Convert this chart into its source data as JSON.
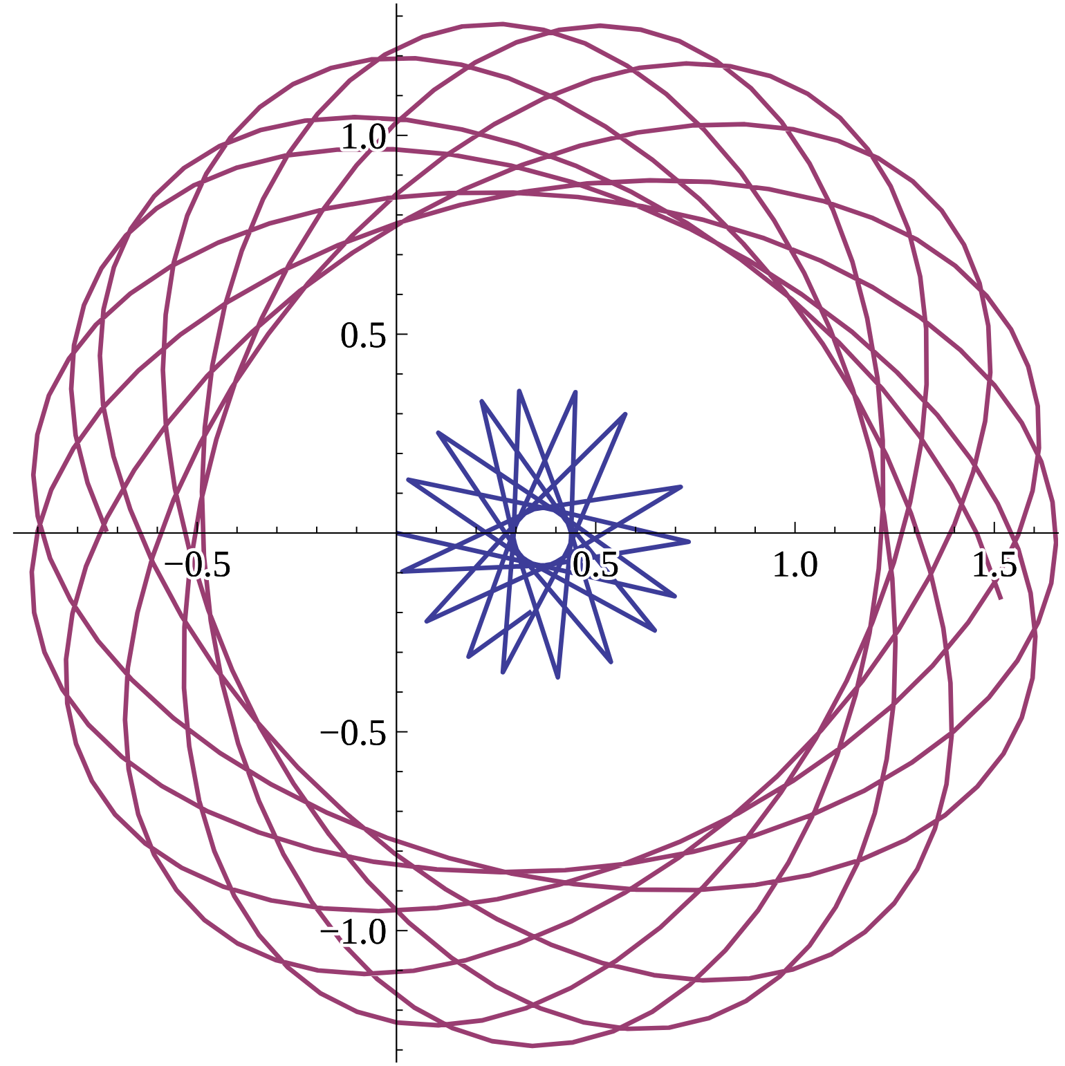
{
  "chart_data": {
    "type": "line",
    "xlim": [
      -0.96,
      1.66
    ],
    "ylim": [
      -1.33,
      1.33
    ],
    "xticks": [
      {
        "value": -0.9,
        "label": null
      },
      {
        "value": -0.8,
        "label": null
      },
      {
        "value": -0.7,
        "label": null
      },
      {
        "value": -0.6,
        "label": null
      },
      {
        "value": -0.5,
        "label": "−0.5"
      },
      {
        "value": -0.4,
        "label": null
      },
      {
        "value": -0.3,
        "label": null
      },
      {
        "value": -0.2,
        "label": null
      },
      {
        "value": -0.1,
        "label": null
      },
      {
        "value": 0.1,
        "label": null
      },
      {
        "value": 0.2,
        "label": null
      },
      {
        "value": 0.3,
        "label": null
      },
      {
        "value": 0.4,
        "label": null
      },
      0.5,
      {
        "value": 0.6,
        "label": null
      },
      {
        "value": 0.7,
        "label": null
      },
      {
        "value": 0.8,
        "label": null
      },
      {
        "value": 0.9,
        "label": null
      },
      {
        "value": 1.0,
        "label": "1.0"
      },
      {
        "value": 1.1,
        "label": null
      },
      {
        "value": 1.2,
        "label": null
      },
      {
        "value": 1.3,
        "label": null
      },
      {
        "value": 1.4,
        "label": null
      },
      1.5,
      {
        "value": 1.6,
        "label": null
      }
    ],
    "yticks": [
      {
        "value": -1.3,
        "label": null
      },
      {
        "value": -1.2,
        "label": null
      },
      {
        "value": -1.1,
        "label": null
      },
      {
        "value": -1.0,
        "label": "−1.0"
      },
      {
        "value": -0.9,
        "label": null
      },
      {
        "value": -0.8,
        "label": null
      },
      {
        "value": -0.7,
        "label": null
      },
      {
        "value": -0.6,
        "label": null
      },
      {
        "value": -0.5,
        "label": "−0.5"
      },
      {
        "value": -0.4,
        "label": null
      },
      {
        "value": -0.3,
        "label": null
      },
      {
        "value": -0.2,
        "label": null
      },
      {
        "value": -0.1,
        "label": null
      },
      {
        "value": 0.1,
        "label": null
      },
      {
        "value": 0.2,
        "label": null
      },
      {
        "value": 0.3,
        "label": null
      },
      {
        "value": 0.4,
        "label": null
      },
      0.5,
      {
        "value": 0.6,
        "label": null
      },
      {
        "value": 0.7,
        "label": null
      },
      {
        "value": 0.8,
        "label": null
      },
      {
        "value": 0.9,
        "label": null
      },
      {
        "value": 1.0,
        "label": "1.0"
      },
      {
        "value": 1.1,
        "label": null
      },
      {
        "value": 1.2,
        "label": null
      },
      {
        "value": 1.3,
        "label": null
      }
    ],
    "series": [
      {
        "color": "#3d3d99",
        "x": [
          0.0,
          0.35,
          0.698,
          0.407,
          0.105,
          0.308,
          0.538,
          0.434,
          0.308,
          0.294,
          0.267,
          0.431,
          0.574,
          0.314,
          0.076,
          0.4,
          0.713,
          0.345,
          0.015,
          0.374,
          0.733,
          0.382,
          0.03,
          0.328,
          0.648,
          0.423,
          0.214,
          0.297,
          0.405,
          0.438,
          0.449,
          0.299,
          0.181,
          0.339
        ],
        "values": [
          0.0,
          -0.079,
          -0.159,
          0.05,
          0.252,
          -0.052,
          -0.324,
          0.014,
          0.357,
          -0.004,
          -0.35,
          -0.04,
          0.299,
          0.041,
          -0.222,
          -0.073,
          0.116,
          0.06,
          -0.097,
          -0.081,
          -0.022,
          0.061,
          0.134,
          -0.07,
          -0.245,
          0.034,
          0.331,
          -0.028,
          -0.363,
          -0.013,
          0.354,
          0.018,
          -0.311,
          -0.197
        ]
      },
      {
        "color": "#993d71",
        "x": [
          1.517,
          1.457,
          1.393,
          1.313,
          1.219,
          1.111,
          0.993,
          0.865,
          0.731,
          0.591,
          0.449,
          0.305,
          0.164,
          0.026,
          -0.105,
          -0.229,
          -0.342,
          -0.444,
          -0.533,
          -0.608,
          -0.667,
          -0.709,
          -0.735,
          -0.744,
          -0.736,
          -0.71,
          -0.668,
          -0.611,
          -0.539,
          -0.453,
          -0.355,
          -0.247,
          -0.13,
          -0.006,
          0.122,
          0.254,
          0.387,
          0.518,
          0.646,
          0.769,
          0.886,
          0.993,
          1.09,
          1.176,
          1.249,
          1.307,
          1.351,
          1.38,
          1.393,
          1.39,
          1.372,
          1.339,
          1.291,
          1.23,
          1.156,
          1.07,
          0.975,
          0.87,
          0.76,
          0.643,
          0.523,
          0.402,
          0.281,
          0.162,
          0.047,
          -0.063,
          -0.165,
          -0.259,
          -0.343,
          -0.416,
          -0.477,
          -0.525,
          -0.559,
          -0.579,
          -0.586,
          -0.578,
          -0.556,
          -0.52,
          -0.472,
          -0.412,
          -0.341,
          -0.259,
          -0.169,
          -0.072,
          0.031,
          0.139,
          0.249,
          0.36,
          0.471,
          0.58,
          0.684,
          0.784,
          0.877,
          0.961,
          1.037,
          1.102,
          1.157,
          1.2,
          1.23,
          1.248,
          1.252,
          1.244,
          1.223,
          1.19,
          1.145,
          1.089,
          1.023,
          0.947,
          0.864,
          0.773,
          0.677,
          0.577,
          0.474,
          0.37,
          0.267,
          0.165,
          0.066,
          -0.029,
          -0.117,
          -0.198,
          -0.271,
          -0.335,
          -0.388,
          -0.431,
          -0.462,
          -0.481,
          -0.488,
          -0.483,
          -0.466,
          -0.437,
          -0.397,
          -0.345,
          -0.284,
          -0.213,
          -0.134,
          -0.048,
          0.044,
          0.14,
          0.24,
          0.341,
          0.443,
          0.544,
          0.642,
          0.736,
          0.825,
          0.908,
          0.983,
          1.05,
          1.106,
          1.152,
          1.187,
          1.21,
          1.221,
          1.22,
          1.207,
          1.181,
          1.144,
          1.095,
          1.036,
          0.967,
          0.889,
          0.803,
          0.71,
          0.612,
          0.511,
          0.407,
          0.301,
          0.197,
          0.094,
          -0.005,
          -0.1,
          -0.188,
          -0.268,
          -0.339,
          -0.401,
          -0.452,
          -0.491,
          -0.518,
          -0.532,
          -0.533,
          -0.52,
          -0.495,
          -0.457,
          -0.407,
          -0.345,
          -0.272,
          -0.19,
          -0.099,
          0.0,
          0.105,
          0.214,
          0.325,
          0.438,
          0.551,
          0.662,
          0.769,
          0.871,
          0.965,
          1.052,
          1.129,
          1.194,
          1.248,
          1.289,
          1.317,
          1.33,
          1.329,
          1.314,
          1.284,
          1.24,
          1.182,
          1.113,
          1.031,
          0.938,
          0.837,
          0.727,
          0.611,
          0.491,
          0.368,
          0.245,
          0.122,
          0.002,
          -0.113,
          -0.222,
          -0.322,
          -0.413,
          -0.492,
          -0.559,
          -0.612,
          -0.65,
          -0.674,
          -0.681,
          -0.672,
          -0.648,
          -0.608,
          -0.552,
          -0.482,
          -0.399,
          -0.303,
          -0.197,
          -0.081,
          0.043,
          0.172,
          0.305,
          0.44,
          0.574,
          0.706,
          0.834,
          0.955,
          1.067,
          1.17,
          1.26,
          1.337,
          1.4,
          1.447,
          1.477,
          1.49,
          1.485,
          1.463,
          1.424,
          1.368,
          1.296,
          1.21,
          1.109,
          0.997,
          0.874,
          0.742,
          0.604,
          0.461,
          0.316,
          0.171,
          0.029,
          -0.11,
          -0.241,
          -0.363,
          -0.475,
          -0.573,
          -0.658,
          -0.727,
          -0.779,
          -0.813,
          -0.829,
          -0.826,
          -0.804,
          -0.764,
          -0.706,
          -0.63,
          -0.539,
          -0.433,
          -0.314,
          -0.184,
          -0.045,
          0.102,
          0.253,
          0.406,
          0.559,
          0.71,
          0.856,
          0.994,
          1.123,
          1.241,
          1.345,
          1.434,
          1.506,
          1.56,
          1.596,
          1.612,
          1.609,
          1.585,
          1.542,
          1.481,
          1.402,
          1.306,
          1.195,
          1.07,
          0.934,
          0.788,
          0.636,
          0.479,
          0.319,
          0.16,
          0.004,
          -0.146,
          -0.289,
          -0.422,
          -0.542,
          -0.648,
          -0.739,
          -0.811,
          -0.866,
          -0.9,
          -0.915,
          -0.909,
          -0.883,
          -0.838,
          -0.773,
          -0.689,
          -0.589,
          -0.474,
          -0.345,
          -0.205,
          -0.056,
          0.101,
          0.261,
          0.423,
          0.585,
          0.743,
          0.895,
          1.039,
          1.172,
          1.292,
          1.398,
          1.487,
          1.558,
          1.61,
          1.643,
          1.655,
          1.646,
          1.618,
          1.569,
          1.501,
          1.415,
          1.313,
          1.195,
          1.064,
          0.923,
          0.772,
          0.616,
          0.455,
          0.293,
          0.132,
          -0.024,
          -0.175,
          -0.317,
          -0.448,
          -0.565,
          -0.668,
          -0.754,
          -0.822,
          -0.872,
          -0.901,
          -0.911,
          -0.9,
          -0.869,
          -0.818,
          -0.749,
          -0.663,
          -0.56,
          -0.443,
          -0.313,
          -0.173,
          -0.025,
          0.13,
          0.287,
          0.446,
          0.602,
          0.755,
          0.901,
          1.038,
          1.165,
          1.278,
          1.376,
          1.458,
          1.523,
          1.569,
          1.596,
          1.603,
          1.591,
          1.56,
          1.509,
          1.441,
          1.357,
          1.256,
          1.143,
          1.017,
          0.882,
          0.738,
          0.59,
          0.439,
          0.287,
          0.137,
          -0.009,
          -0.149,
          -0.28,
          -0.4,
          -0.507,
          -0.601,
          -0.679,
          -0.74,
          -0.784,
          -0.809,
          -0.816,
          -0.805,
          -0.775,
          -0.727
        ],
        "values": [
          -0.167,
          -0.003,
          0.12,
          0.243,
          0.363,
          0.478,
          0.587,
          0.687,
          0.778,
          0.857,
          0.924,
          0.977,
          1.015,
          1.039,
          1.046,
          1.037,
          1.013,
          0.973,
          0.918,
          0.847,
          0.764,
          0.668,
          0.562,
          0.446,
          0.322,
          0.193,
          0.06,
          -0.075,
          -0.209,
          -0.341,
          -0.469,
          -0.59,
          -0.702,
          -0.805,
          -0.895,
          -0.972,
          -1.035,
          -1.082,
          -1.112,
          -1.125,
          -1.12,
          -1.098,
          -1.06,
          -1.003,
          -0.931,
          -0.845,
          -0.744,
          -0.632,
          -0.509,
          -0.377,
          -0.239,
          -0.096,
          0.049,
          0.194,
          0.336,
          0.475,
          0.606,
          0.728,
          0.84,
          0.938,
          1.023,
          1.092,
          1.144,
          1.178,
          1.194,
          1.191,
          1.169,
          1.129,
          1.071,
          0.995,
          0.904,
          0.798,
          0.679,
          0.549,
          0.41,
          0.263,
          0.112,
          -0.041,
          -0.194,
          -0.345,
          -0.491,
          -0.629,
          -0.758,
          -0.876,
          -0.98,
          -1.069,
          -1.141,
          -1.195,
          -1.231,
          -1.247,
          -1.244,
          -1.22,
          -1.177,
          -1.116,
          -1.037,
          -0.941,
          -0.83,
          -0.705,
          -0.569,
          -0.423,
          -0.271,
          -0.114,
          0.046,
          0.205,
          0.361,
          0.511,
          0.654,
          0.787,
          0.907,
          1.013,
          1.104,
          1.176,
          1.231,
          1.265,
          1.28,
          1.274,
          1.248,
          1.203,
          1.138,
          1.054,
          0.954,
          0.839,
          0.71,
          0.57,
          0.421,
          0.264,
          0.104,
          -0.058,
          -0.22,
          -0.378,
          -0.53,
          -0.674,
          -0.807,
          -0.927,
          -1.033,
          -1.122,
          -1.193,
          -1.245,
          -1.278,
          -1.29,
          -1.281,
          -1.253,
          -1.204,
          -1.136,
          -1.05,
          -0.948,
          -0.83,
          -0.699,
          -0.558,
          -0.407,
          -0.251,
          -0.09,
          0.072,
          0.233,
          0.389,
          0.54,
          0.682,
          0.813,
          0.93,
          1.033,
          1.119,
          1.187,
          1.237,
          1.266,
          1.276,
          1.265,
          1.234,
          1.183,
          1.114,
          1.028,
          0.925,
          0.808,
          0.678,
          0.538,
          0.39,
          0.235,
          0.078,
          -0.081,
          -0.237,
          -0.39,
          -0.536,
          -0.673,
          -0.8,
          -0.913,
          -1.011,
          -1.093,
          -1.158,
          -1.204,
          -1.231,
          -1.238,
          -1.226,
          -1.195,
          -1.144,
          -1.076,
          -0.992,
          -0.891,
          -0.778,
          -0.652,
          -0.517,
          -0.373,
          -0.225,
          -0.074,
          0.078,
          0.228,
          0.374,
          0.514,
          0.645,
          0.765,
          0.872,
          0.966,
          1.044,
          1.105,
          1.149,
          1.174,
          1.181,
          1.17,
          1.14,
          1.092,
          1.028,
          0.948,
          0.854,
          0.746,
          0.628,
          0.5,
          0.366,
          0.226,
          0.084,
          -0.06,
          -0.201,
          -0.339,
          -0.47,
          -0.594,
          -0.707,
          -0.809,
          -0.898,
          -0.973,
          -1.032,
          -1.074,
          -1.1,
          -1.109,
          -1.101,
          -1.075,
          -1.033,
          -0.976,
          -0.904,
          -0.818,
          -0.72,
          -0.612,
          -0.495,
          -0.371,
          -0.243,
          -0.111,
          0.022,
          0.153,
          0.281,
          0.404,
          0.521,
          0.628,
          0.725,
          0.811,
          0.884,
          0.942,
          0.986,
          1.015,
          1.028,
          1.025,
          1.007,
          0.974,
          0.926,
          0.865,
          0.791,
          0.705,
          0.61,
          0.505,
          0.395,
          0.278,
          0.158,
          0.037,
          -0.084,
          -0.203,
          -0.318,
          -0.428,
          -0.53,
          -0.624,
          -0.708,
          -0.781,
          -0.842,
          -0.89,
          -0.924,
          -0.944,
          -0.951,
          -0.943,
          -0.921,
          -0.885,
          -0.837,
          -0.777,
          -0.706,
          -0.624,
          -0.534,
          -0.437,
          -0.334,
          -0.226,
          -0.116,
          -0.005,
          0.106,
          0.214,
          0.319,
          0.419,
          0.512,
          0.596,
          0.672,
          0.738,
          0.792,
          0.835,
          0.865,
          0.883,
          0.887,
          0.879,
          0.858,
          0.825,
          0.78,
          0.724,
          0.658,
          0.582,
          0.499,
          0.408,
          0.312,
          0.212,
          0.109,
          0.005,
          -0.098,
          -0.2,
          -0.3,
          -0.394,
          -0.482,
          -0.563,
          -0.636,
          -0.7,
          -0.753,
          -0.796,
          -0.827,
          -0.846,
          -0.853,
          -0.848,
          -0.831,
          -0.802,
          -0.762,
          -0.71,
          -0.649,
          -0.578,
          -0.499,
          -0.413,
          -0.321,
          -0.225,
          -0.126,
          -0.024,
          0.078,
          0.179,
          0.277,
          0.371,
          0.46,
          0.543,
          0.618,
          0.685,
          0.741,
          0.787,
          0.822,
          0.845,
          0.856,
          0.855,
          0.842,
          0.816,
          0.779,
          0.73,
          0.671,
          0.602,
          0.524,
          0.438,
          0.346,
          0.247,
          0.146,
          0.042,
          -0.064,
          -0.168,
          -0.271,
          -0.37,
          -0.465,
          -0.553,
          -0.633,
          -0.704,
          -0.766,
          -0.817,
          -0.856,
          -0.883,
          -0.897,
          -0.898,
          -0.885,
          -0.86,
          -0.822,
          -0.772,
          -0.71,
          -0.637,
          -0.555,
          -0.464,
          -0.365,
          -0.26,
          -0.151,
          -0.04,
          0.073,
          0.186,
          0.297,
          0.404,
          0.506,
          0.6,
          0.687,
          0.764,
          0.829,
          0.883,
          0.924,
          0.952,
          0.965,
          0.964,
          0.949,
          0.919,
          0.875,
          0.817,
          0.748,
          0.666,
          0.573,
          0.472,
          0.362,
          0.246,
          0.126,
          0.003
        ]
      }
    ]
  }
}
